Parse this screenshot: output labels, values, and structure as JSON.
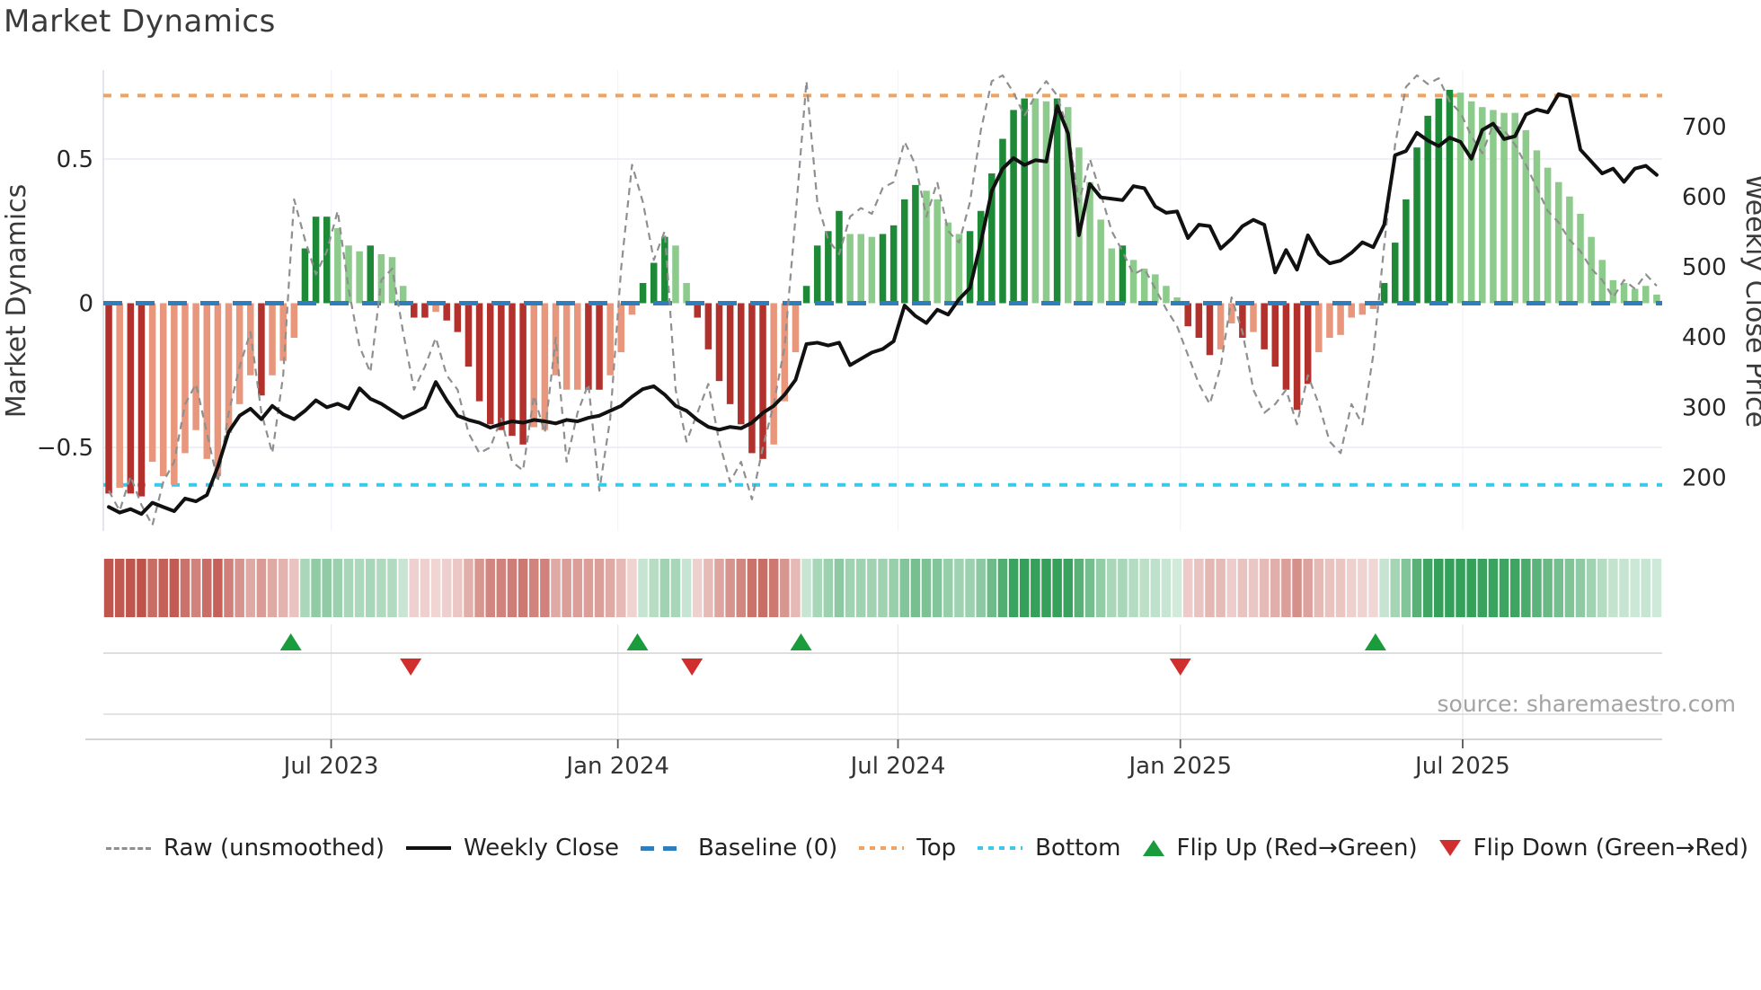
{
  "title": "Market Dynamics",
  "y_left_label": "Market Dynamics",
  "y_right_label": "Weekly Close Price",
  "source_text": "source: sharemaestro.com",
  "colors": {
    "dark_green": "#1e8a38",
    "light_green": "#8ccb8b",
    "dark_red": "#b3312c",
    "salmon": "#e8977c",
    "baseline": "#2e7ebd",
    "top": "#f2a25e",
    "bottom": "#3cc8e8",
    "raw": "#8f8f8f",
    "price": "#111111",
    "flip_up": "#1a9c3c",
    "flip_down": "#d12e2e",
    "heat_green": "#34a05a",
    "heat_red": "#bd4d44",
    "grid": "#e9ecf4",
    "spine": "#d9dde6",
    "panel_line": "#d4d4d4",
    "axis_line": "#c6c6c6"
  },
  "chart_data": {
    "type": "combo: weekly oscillator bars + heatmap strip + price line + raw dashed line + flip markers",
    "x_range": "weekly, ~Feb 2023 to ~Nov 2025 (143 weeks)",
    "baseline": 0,
    "top_level": 0.72,
    "bottom_level": -0.63,
    "ylim_left": [
      -0.79,
      0.81
    ],
    "ylim_right_ticks": [
      700,
      600,
      500,
      400,
      300,
      200
    ],
    "y_left_ticks": [
      {
        "v": 0.5,
        "label": "0.5"
      },
      {
        "v": 0,
        "label": "0"
      },
      {
        "v": -0.5,
        "label": "−0.5"
      }
    ],
    "x_ticks": [
      {
        "week": 20.4,
        "label": "Jul 2023"
      },
      {
        "week": 46.7,
        "label": "Jan 2024"
      },
      {
        "week": 72.4,
        "label": "Jul 2024"
      },
      {
        "week": 98.3,
        "label": "Jan 2025"
      },
      {
        "week": 124.2,
        "label": "Jul 2025"
      }
    ],
    "flip_up_weeks": [
      16.7,
      48.5,
      63.5,
      116.2
    ],
    "flip_down_weeks": [
      27.7,
      53.5,
      98.3
    ],
    "osc": [
      -0.66,
      -0.64,
      -0.66,
      -0.67,
      -0.55,
      -0.6,
      -0.63,
      -0.52,
      -0.44,
      -0.54,
      -0.6,
      -0.45,
      -0.35,
      -0.25,
      -0.32,
      -0.25,
      -0.2,
      -0.12,
      0.19,
      0.3,
      0.3,
      0.26,
      0.2,
      0.18,
      0.2,
      0.17,
      0.16,
      0.06,
      -0.05,
      -0.05,
      -0.03,
      -0.06,
      -0.1,
      -0.22,
      -0.34,
      -0.42,
      -0.44,
      -0.46,
      -0.49,
      -0.43,
      -0.44,
      -0.25,
      -0.3,
      -0.3,
      -0.3,
      -0.3,
      -0.25,
      -0.17,
      -0.04,
      0.07,
      0.14,
      0.23,
      0.2,
      0.07,
      -0.05,
      -0.16,
      -0.27,
      -0.35,
      -0.42,
      -0.52,
      -0.54,
      -0.49,
      -0.34,
      -0.17,
      0.06,
      0.2,
      0.25,
      0.32,
      0.24,
      0.24,
      0.23,
      0.24,
      0.27,
      0.36,
      0.41,
      0.39,
      0.36,
      0.28,
      0.24,
      0.25,
      0.32,
      0.45,
      0.57,
      0.67,
      0.71,
      0.71,
      0.7,
      0.71,
      0.68,
      0.54,
      0.42,
      0.29,
      0.19,
      0.2,
      0.15,
      0.12,
      0.1,
      0.06,
      0.02,
      -0.08,
      -0.12,
      -0.18,
      -0.16,
      -0.07,
      -0.12,
      -0.1,
      -0.16,
      -0.22,
      -0.3,
      -0.37,
      -0.28,
      -0.17,
      -0.12,
      -0.11,
      -0.05,
      -0.04,
      -0.02,
      0.07,
      0.21,
      0.36,
      0.54,
      0.65,
      0.71,
      0.74,
      0.73,
      0.7,
      0.68,
      0.67,
      0.66,
      0.66,
      0.6,
      0.53,
      0.47,
      0.42,
      0.37,
      0.31,
      0.23,
      0.15,
      0.08,
      0.07,
      0.05,
      0.06,
      0.03
    ],
    "shade_rows": [
      "dlddllllll",
      "lllldllldd",
      "dllldllldd",
      "lddddddddl",
      "llllddllld",
      "ddlldddddd",
      "dlllddddll",
      "lddddlllld",
      "dddddlldll",
      "llldllllld",
      "ddlldldddd",
      "dllllllddd",
      "ddddllllll",
      "llllllllll",
      "lll"
    ],
    "raw": [
      -0.65,
      -0.72,
      -0.6,
      -0.7,
      -0.77,
      -0.62,
      -0.55,
      -0.35,
      -0.28,
      -0.45,
      -0.62,
      -0.38,
      -0.22,
      -0.1,
      -0.38,
      -0.52,
      -0.25,
      0.36,
      0.22,
      0.1,
      0.18,
      0.32,
      0.05,
      -0.15,
      -0.24,
      0.08,
      0.12,
      -0.1,
      -0.3,
      -0.22,
      -0.12,
      -0.25,
      -0.3,
      -0.45,
      -0.52,
      -0.5,
      -0.4,
      -0.55,
      -0.58,
      -0.32,
      -0.45,
      -0.12,
      -0.55,
      -0.38,
      -0.28,
      -0.65,
      -0.4,
      0.12,
      0.48,
      0.35,
      0.15,
      0.25,
      -0.3,
      -0.48,
      -0.38,
      -0.28,
      -0.48,
      -0.62,
      -0.55,
      -0.68,
      -0.5,
      -0.35,
      -0.15,
      0.3,
      0.77,
      0.35,
      0.22,
      0.17,
      0.3,
      0.33,
      0.31,
      0.4,
      0.42,
      0.56,
      0.48,
      0.3,
      0.42,
      0.25,
      0.21,
      0.35,
      0.6,
      0.77,
      0.79,
      0.73,
      0.65,
      0.72,
      0.77,
      0.72,
      0.6,
      0.35,
      0.5,
      0.38,
      0.25,
      0.18,
      0.1,
      0.12,
      0.05,
      -0.02,
      -0.08,
      -0.18,
      -0.28,
      -0.35,
      -0.22,
      0.02,
      -0.1,
      -0.3,
      -0.38,
      -0.35,
      -0.3,
      -0.42,
      -0.25,
      -0.35,
      -0.48,
      -0.52,
      -0.35,
      -0.42,
      -0.18,
      0.2,
      0.55,
      0.75,
      0.79,
      0.76,
      0.78,
      0.7,
      0.66,
      0.58,
      0.52,
      0.62,
      0.6,
      0.55,
      0.48,
      0.4,
      0.32,
      0.28,
      0.22,
      0.18,
      0.12,
      0.08,
      0.02,
      0.08,
      0.05,
      0.1,
      0.06
    ],
    "price": [
      158,
      150,
      155,
      148,
      164,
      158,
      152,
      170,
      166,
      175,
      215,
      265,
      288,
      298,
      283,
      302,
      290,
      283,
      295,
      310,
      300,
      305,
      298,
      327,
      312,
      305,
      295,
      285,
      292,
      300,
      336,
      310,
      288,
      282,
      278,
      271,
      276,
      280,
      278,
      282,
      280,
      277,
      282,
      280,
      285,
      288,
      295,
      302,
      315,
      326,
      330,
      318,
      302,
      295,
      282,
      272,
      268,
      272,
      270,
      278,
      292,
      302,
      318,
      339,
      390,
      392,
      388,
      392,
      360,
      369,
      378,
      383,
      394,
      445,
      430,
      420,
      439,
      432,
      454,
      470,
      535,
      608,
      640,
      655,
      645,
      652,
      650,
      729,
      690,
      545,
      618,
      599,
      597,
      595,
      615,
      612,
      586,
      577,
      579,
      541,
      560,
      558,
      526,
      540,
      558,
      567,
      560,
      492,
      524,
      496,
      545,
      518,
      505,
      509,
      520,
      535,
      528,
      560,
      659,
      665,
      691,
      680,
      672,
      684,
      678,
      654,
      695,
      704,
      682,
      686,
      717,
      724,
      720,
      746,
      742,
      667,
      650,
      633,
      640,
      621,
      640,
      644,
      631
    ]
  },
  "legend": {
    "items": [
      {
        "id": "raw",
        "type": "dash",
        "label": "Raw (unsmoothed)"
      },
      {
        "id": "close",
        "type": "solid",
        "label": "Weekly Close"
      },
      {
        "id": "baseline",
        "type": "bdash",
        "label": "Baseline (0)"
      },
      {
        "id": "top",
        "type": "odot",
        "label": "Top"
      },
      {
        "id": "bottom",
        "type": "cdot",
        "label": "Bottom"
      },
      {
        "id": "flipup",
        "type": "triup",
        "label": "Flip Up (Red→Green)"
      },
      {
        "id": "flipdown",
        "type": "tridown",
        "label": "Flip Down (Green→Red)"
      }
    ]
  }
}
